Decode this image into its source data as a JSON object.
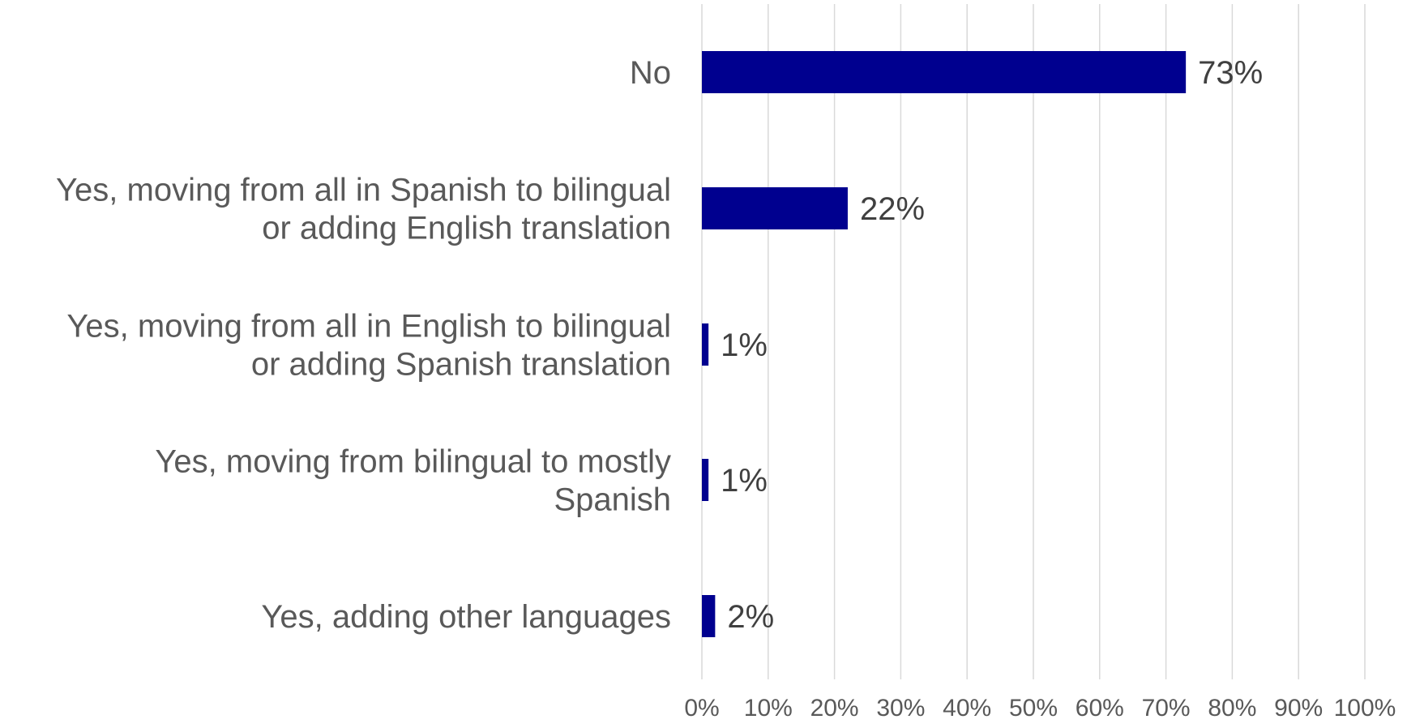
{
  "chart_data": {
    "type": "bar",
    "orientation": "horizontal",
    "categories": [
      [
        "No"
      ],
      [
        "Yes, moving from all in Spanish to bilingual",
        "or adding English translation"
      ],
      [
        "Yes, moving from all in English to bilingual",
        "or adding Spanish translation"
      ],
      [
        "Yes, moving from bilingual to mostly",
        "Spanish"
      ],
      [
        "Yes, adding other languages"
      ]
    ],
    "values": [
      73,
      22,
      1,
      1,
      2
    ],
    "value_labels": [
      "73%",
      "22%",
      "1%",
      "1%",
      "2%"
    ],
    "xlim": [
      0,
      100
    ],
    "x_ticks": [
      0,
      10,
      20,
      30,
      40,
      50,
      60,
      70,
      80,
      90,
      100
    ],
    "x_tick_labels": [
      "0%",
      "10%",
      "20%",
      "30%",
      "40%",
      "50%",
      "60%",
      "70%",
      "80%",
      "90%",
      "100%"
    ],
    "grid": true,
    "title": "",
    "xlabel": "",
    "ylabel": "",
    "colors": {
      "bar": "#00008f",
      "grid": "#d9d9d9",
      "category_text": "#595959",
      "value_text": "#404040",
      "tick_text": "#595959"
    }
  }
}
